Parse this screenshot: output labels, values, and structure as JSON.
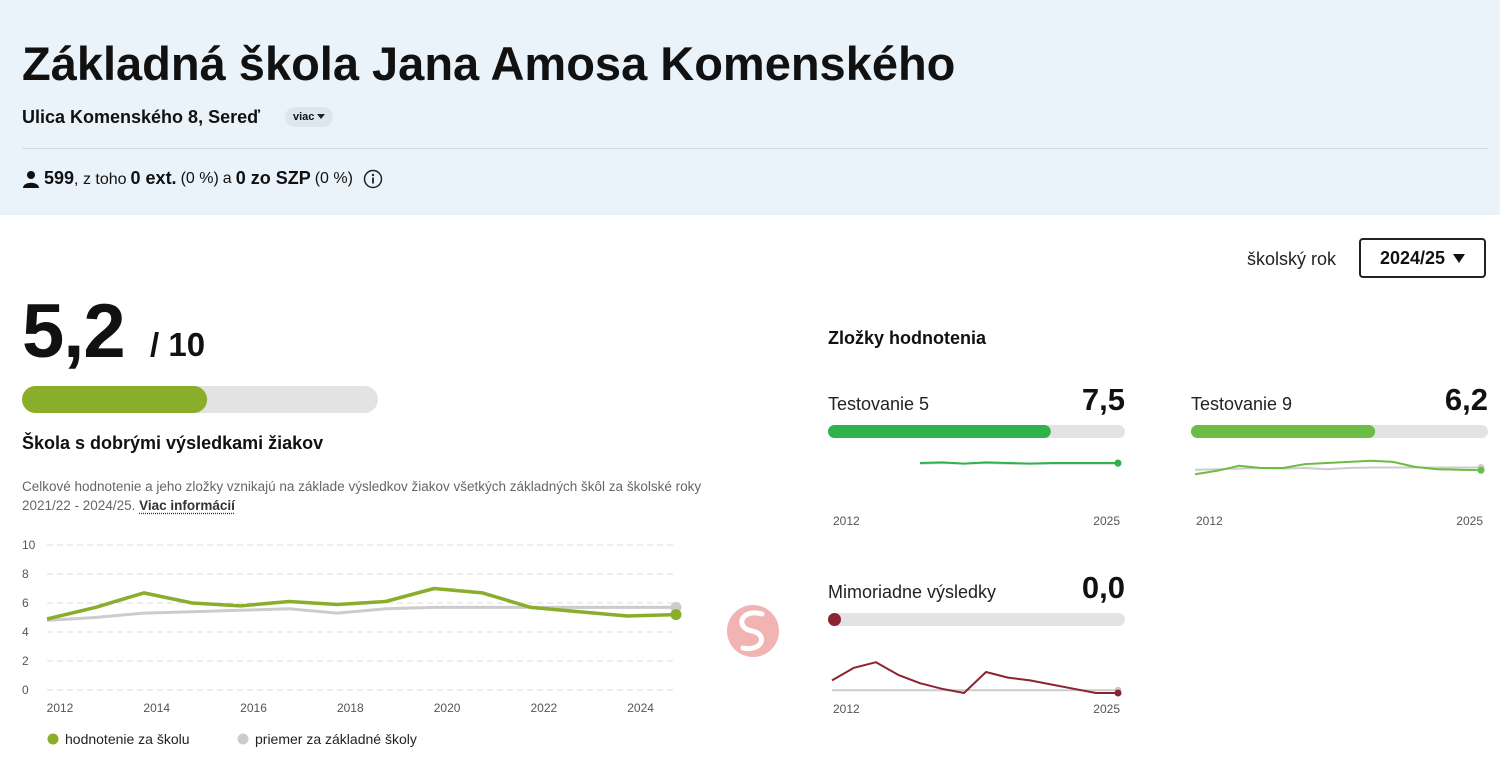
{
  "header": {
    "title": "Základná škola Jana Amosa Komenského",
    "address": "Ulica Komenského 8, Sereď",
    "more": "viac",
    "stats": {
      "count": "599",
      "t1": ", z toho",
      "ext": "0 ext.",
      "ext_pct": "(0 %)",
      "t2": "a",
      "szp": "0 zo SZP",
      "szp_pct": "(0 %)"
    }
  },
  "year_selector": {
    "label": "školský rok",
    "value": "2024/25"
  },
  "score": {
    "value": 5.2,
    "label": "5,2",
    "max": 10,
    "max_label": "/ 10",
    "color": "#8aad2b"
  },
  "summary": {
    "heading": "Škola s dobrými výsledkami žiakov",
    "text": "Celkové hodnotenie a jeho zložky vznikajú na základe výsledkov žiakov všetkých základných škôl za školské roky 2021/22 - 2024/25.",
    "link": "Viac informácií"
  },
  "chart_data": {
    "type": "line",
    "x": [
      2012,
      2013,
      2014,
      2015,
      2016,
      2017,
      2018,
      2019,
      2020,
      2021,
      2022,
      2023,
      2024,
      2025
    ],
    "xlim": [
      2012,
      2025
    ],
    "xticks": [
      2012,
      2014,
      2016,
      2018,
      2020,
      2022,
      2024
    ],
    "ylim": [
      0,
      10
    ],
    "yticks": [
      0,
      2,
      4,
      6,
      8,
      10
    ],
    "grid": true,
    "series": [
      {
        "name": "priemer za základné školy",
        "color": "#cccccc",
        "values": [
          4.8,
          5.0,
          5.3,
          5.4,
          5.5,
          5.6,
          5.3,
          5.6,
          5.7,
          5.7,
          5.7,
          5.7,
          5.7,
          5.7
        ]
      },
      {
        "name": "hodnotenie za školu",
        "color": "#8aad2b",
        "values": [
          4.9,
          5.7,
          6.7,
          6.0,
          5.8,
          6.1,
          5.9,
          6.1,
          7.0,
          6.7,
          5.7,
          5.4,
          5.1,
          5.2
        ]
      }
    ]
  },
  "components": {
    "title": "Zložky hodnotenia",
    "items": [
      {
        "name": "Testovanie 5",
        "value": 7.5,
        "value_label": "7,5",
        "color": "#2db34a",
        "chart": {
          "type": "line",
          "x": [
            2012,
            2013,
            2014,
            2015,
            2016,
            2017,
            2018,
            2019,
            2020,
            2021,
            2022,
            2023,
            2024,
            2025
          ],
          "xlim": [
            2012,
            2025
          ],
          "xticks": [
            2012,
            2025
          ],
          "ylim": [
            0,
            10
          ],
          "series": [
            {
              "color": "#cccccc",
              "values": [
                null,
                null,
                null,
                null,
                7.4,
                7.5,
                7.4,
                7.5,
                7.4,
                7.4,
                7.4,
                7.4,
                7.4,
                7.4
              ]
            },
            {
              "color": "#2db34a",
              "values": [
                null,
                null,
                null,
                null,
                7.5,
                7.6,
                7.4,
                7.6,
                7.5,
                7.4,
                7.5,
                7.5,
                7.5,
                7.5
              ]
            }
          ]
        }
      },
      {
        "name": "Testovanie 9",
        "value": 6.2,
        "value_label": "6,2",
        "color": "#6cbd45",
        "chart": {
          "type": "line",
          "x": [
            2012,
            2013,
            2014,
            2015,
            2016,
            2017,
            2018,
            2019,
            2020,
            2021,
            2022,
            2023,
            2024,
            2025
          ],
          "xlim": [
            2012,
            2025
          ],
          "xticks": [
            2012,
            2025
          ],
          "ylim": [
            0,
            10
          ],
          "series": [
            {
              "color": "#cccccc",
              "values": [
                6.3,
                6.4,
                6.5,
                6.6,
                6.5,
                6.6,
                6.4,
                6.6,
                6.7,
                6.7,
                6.7,
                6.7,
                6.7,
                6.7
              ]
            },
            {
              "color": "#6cbd45",
              "values": [
                5.5,
                6.1,
                7.0,
                6.6,
                6.6,
                7.3,
                7.5,
                7.7,
                7.9,
                7.7,
                6.8,
                6.4,
                6.3,
                6.2
              ]
            }
          ]
        }
      },
      {
        "name": "Mimoriadne výsledky",
        "value": 0,
        "value_label": "0,0",
        "color": "#8b2332",
        "chart": {
          "type": "line",
          "x": [
            2012,
            2013,
            2014,
            2015,
            2016,
            2017,
            2018,
            2019,
            2020,
            2021,
            2022,
            2023,
            2024,
            2025
          ],
          "xlim": [
            2012,
            2025
          ],
          "xticks": [
            2012,
            2025
          ],
          "ylim": [
            0,
            4
          ],
          "series": [
            {
              "color": "#cccccc",
              "values": [
                0.2,
                0.2,
                0.2,
                0.2,
                0.2,
                0.2,
                0.2,
                0.2,
                0.2,
                0.2,
                0.2,
                0.2,
                0.2,
                0.2
              ]
            },
            {
              "color": "#8b2332",
              "values": [
                0.9,
                1.8,
                2.2,
                1.3,
                0.7,
                0.3,
                0.0,
                1.5,
                1.1,
                0.9,
                0.6,
                0.3,
                0.0,
                0.0
              ]
            }
          ]
        }
      }
    ]
  }
}
